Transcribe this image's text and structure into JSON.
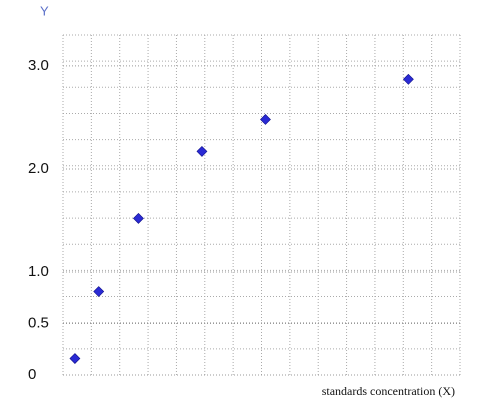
{
  "chart_data": {
    "type": "scatter",
    "y_label": "Y",
    "x_label": "standards concentration (X)",
    "x": [
      0.03,
      0.09,
      0.19,
      0.35,
      0.51,
      0.87
    ],
    "series": [
      {
        "color": "#2a2ad4",
        "values": [
          0.16,
          0.81,
          1.52,
          2.17,
          2.48,
          2.87
        ]
      }
    ],
    "xlim": [
      0,
      1
    ],
    "ylim": [
      0,
      3.3
    ],
    "yticks": [
      0,
      0.5,
      {
        "value": 1,
        "label": "1.0"
      },
      {
        "value": 2,
        "label": "2.0"
      },
      {
        "value": 3,
        "label": "3.0"
      }
    ],
    "grid": true
  }
}
